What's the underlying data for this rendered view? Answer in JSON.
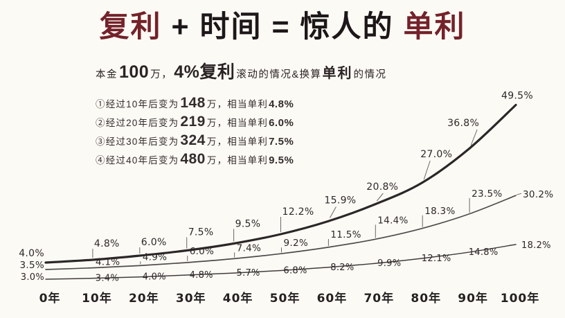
{
  "title": {
    "accent_color": "#74222a",
    "text_color": "#1d1719",
    "segments": [
      {
        "text": "复利"
      },
      {
        "text": "+"
      },
      {
        "text": "时间"
      },
      {
        "text": "="
      },
      {
        "text": "惊人的"
      },
      {
        "text": "单利"
      }
    ]
  },
  "subtitle": {
    "segments": [
      {
        "text": "本金"
      },
      {
        "text": "100"
      },
      {
        "text": "万，"
      },
      {
        "text": "4%复利"
      },
      {
        "text": "滚动的情况&换算"
      },
      {
        "text": "单利"
      },
      {
        "text": "的情况"
      }
    ]
  },
  "notes": [
    {
      "prefix": "①经过10年后变为",
      "amount": "148",
      "unit": "万，",
      "mid": "相当单利",
      "rate": "4.8%"
    },
    {
      "prefix": "②经过20年后变为",
      "amount": "219",
      "unit": "万，",
      "mid": "相当单利",
      "rate": "6.0%"
    },
    {
      "prefix": "③经过30年后变为",
      "amount": "324",
      "unit": "万，",
      "mid": "相当单利",
      "rate": "7.5%"
    },
    {
      "prefix": "④经过40年后变为",
      "amount": "480",
      "unit": "万，",
      "mid": "相当单利",
      "rate": "9.5%"
    }
  ],
  "chart_data": {
    "type": "line",
    "x": [
      0,
      10,
      20,
      30,
      40,
      50,
      60,
      70,
      80,
      90,
      100
    ],
    "x_tick_labels": [
      "0年",
      "10年",
      "20年",
      "30年",
      "40年",
      "50年",
      "60年",
      "70年",
      "80年",
      "90年",
      "100年"
    ],
    "xlabel": "",
    "ylabel": "",
    "grid": false,
    "legend": false,
    "series": [
      {
        "name": "top",
        "stroke_color": "#2b2728",
        "stroke_width": 3.2,
        "values": [
          4.0,
          4.8,
          6.0,
          7.5,
          9.5,
          12.2,
          15.9,
          20.8,
          27.0,
          36.8,
          49.5
        ],
        "labels": [
          "4.0%",
          "4.8%",
          "6.0%",
          "7.5%",
          "9.5%",
          "12.2%",
          "15.9%",
          "20.8%",
          "27.0%",
          "36.8%",
          "49.5%"
        ]
      },
      {
        "name": "middle",
        "stroke_color": "#4e4a4b",
        "stroke_width": 1.7,
        "values": [
          3.5,
          4.1,
          4.9,
          6.0,
          7.4,
          9.2,
          11.5,
          14.4,
          18.3,
          23.5,
          30.2
        ],
        "labels": [
          "3.5%",
          "4.1%",
          "4.9%",
          "6.0%",
          "7.4%",
          "9.2%",
          "11.5%",
          "14.4%",
          "18.3%",
          "23.5%",
          "30.2%"
        ]
      },
      {
        "name": "bottom",
        "stroke_color": "#403c3d",
        "stroke_width": 1.5,
        "values": [
          3.0,
          3.4,
          4.0,
          4.8,
          5.7,
          6.8,
          8.2,
          9.9,
          12.1,
          14.8,
          18.2
        ],
        "labels": [
          "3.0%",
          "3.4%",
          "4.0%",
          "4.8%",
          "5.7%",
          "6.8%",
          "8.2%",
          "9.9%",
          "12.1%",
          "14.8%",
          "18.2%"
        ]
      }
    ]
  }
}
